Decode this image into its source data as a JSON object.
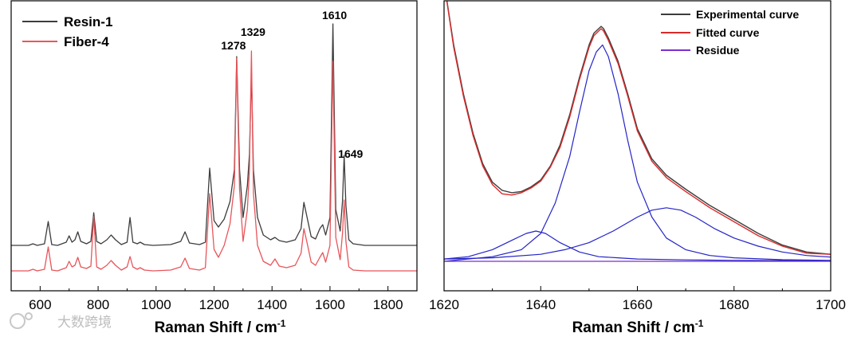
{
  "chart_data": [
    {
      "type": "line",
      "xlabel": "Raman Shift / cm",
      "xlabel_sup": "-1",
      "xlim": [
        500,
        1900
      ],
      "xticks": [
        "600",
        "800",
        "1000",
        "1200",
        "1400",
        "1600",
        "1800"
      ],
      "legend_position": "top-left",
      "grid": false,
      "series": [
        {
          "name": "Resin-1",
          "color": "#3d3d3d",
          "x": [
            500,
            560,
            575,
            590,
            615,
            628,
            640,
            660,
            690,
            700,
            710,
            720,
            730,
            740,
            760,
            775,
            785,
            795,
            810,
            830,
            845,
            860,
            880,
            900,
            910,
            920,
            935,
            945,
            960,
            990,
            1050,
            1085,
            1100,
            1115,
            1150,
            1170,
            1185,
            1200,
            1215,
            1235,
            1255,
            1270,
            1278,
            1288,
            1300,
            1315,
            1322,
            1329,
            1336,
            1350,
            1370,
            1395,
            1410,
            1425,
            1450,
            1480,
            1500,
            1510,
            1520,
            1535,
            1550,
            1565,
            1575,
            1585,
            1600,
            1610,
            1620,
            1635,
            1643,
            1649,
            1655,
            1665,
            1680,
            1720,
            1800,
            1900
          ],
          "y": [
            0.05,
            0.05,
            0.07,
            0.05,
            0.07,
            0.35,
            0.06,
            0.05,
            0.09,
            0.17,
            0.09,
            0.12,
            0.22,
            0.1,
            0.07,
            0.1,
            0.46,
            0.1,
            0.07,
            0.12,
            0.18,
            0.12,
            0.06,
            0.09,
            0.4,
            0.09,
            0.07,
            0.09,
            0.06,
            0.05,
            0.06,
            0.1,
            0.22,
            0.08,
            0.06,
            0.09,
            1.02,
            0.36,
            0.28,
            0.38,
            0.6,
            1.0,
            2.42,
            1.0,
            0.4,
            0.8,
            1.2,
            2.22,
            1.0,
            0.4,
            0.18,
            0.12,
            0.15,
            0.11,
            0.09,
            0.12,
            0.26,
            0.59,
            0.42,
            0.16,
            0.13,
            0.26,
            0.31,
            0.18,
            0.4,
            2.83,
            0.5,
            0.23,
            0.6,
            1.18,
            0.55,
            0.12,
            0.07,
            0.05,
            0.05,
            0.05
          ]
        },
        {
          "name": "Fiber-4",
          "color": "#e8555a",
          "x": [
            500,
            560,
            575,
            590,
            615,
            628,
            640,
            660,
            690,
            700,
            710,
            720,
            730,
            740,
            760,
            775,
            785,
            795,
            810,
            830,
            845,
            860,
            880,
            900,
            910,
            920,
            935,
            945,
            960,
            990,
            1050,
            1085,
            1100,
            1115,
            1150,
            1170,
            1185,
            1200,
            1215,
            1235,
            1255,
            1270,
            1278,
            1288,
            1300,
            1315,
            1322,
            1329,
            1336,
            1350,
            1370,
            1395,
            1410,
            1425,
            1450,
            1480,
            1500,
            1510,
            1520,
            1535,
            1550,
            1565,
            1575,
            1585,
            1600,
            1610,
            1620,
            1635,
            1643,
            1649,
            1655,
            1665,
            1680,
            1720,
            1800,
            1900
          ],
          "y": [
            0.03,
            0.03,
            0.05,
            0.03,
            0.05,
            0.33,
            0.04,
            0.03,
            0.07,
            0.15,
            0.08,
            0.1,
            0.2,
            0.08,
            0.06,
            0.09,
            0.71,
            0.08,
            0.05,
            0.1,
            0.16,
            0.1,
            0.04,
            0.08,
            0.21,
            0.08,
            0.05,
            0.07,
            0.04,
            0.03,
            0.04,
            0.08,
            0.19,
            0.06,
            0.04,
            0.07,
            1.0,
            0.3,
            0.2,
            0.35,
            0.62,
            1.1,
            2.7,
            1.05,
            0.4,
            0.8,
            1.3,
            2.79,
            1.0,
            0.35,
            0.15,
            0.1,
            0.18,
            0.09,
            0.07,
            0.1,
            0.25,
            0.56,
            0.4,
            0.14,
            0.1,
            0.2,
            0.26,
            0.14,
            0.35,
            2.66,
            0.45,
            0.17,
            0.5,
            0.92,
            0.4,
            0.08,
            0.04,
            0.03,
            0.03,
            0.03
          ]
        }
      ],
      "annotations": [
        {
          "text": "1278",
          "x": 1278
        },
        {
          "text": "1329",
          "x": 1329
        },
        {
          "text": "1610",
          "x": 1610
        },
        {
          "text": "1649",
          "x": 1649
        }
      ]
    },
    {
      "type": "line",
      "xlabel": "Raman Shift / cm",
      "xlabel_sup": "-1",
      "xlim": [
        1620,
        1700
      ],
      "xticks": [
        "1620",
        "1640",
        "1660",
        "1680",
        "1700"
      ],
      "legend_position": "top-right",
      "grid": false,
      "series": [
        {
          "name": "Experimental curve",
          "color": "#3d3d3d",
          "x": [
            1620,
            1622,
            1624,
            1626,
            1628,
            1630,
            1632,
            1634,
            1636,
            1638,
            1640,
            1642,
            1644,
            1646,
            1648,
            1650,
            1651,
            1652,
            1652.5,
            1653,
            1654,
            1656,
            1658,
            1660,
            1663,
            1666,
            1670,
            1675,
            1680,
            1685,
            1690,
            1695,
            1700
          ],
          "y": [
            1.2,
            0.93,
            0.72,
            0.55,
            0.42,
            0.34,
            0.305,
            0.295,
            0.3,
            0.32,
            0.35,
            0.41,
            0.5,
            0.63,
            0.79,
            0.93,
            0.98,
            1.0,
            1.01,
            1.0,
            0.96,
            0.86,
            0.72,
            0.57,
            0.44,
            0.37,
            0.31,
            0.24,
            0.18,
            0.12,
            0.07,
            0.04,
            0.03
          ]
        },
        {
          "name": "Fitted curve",
          "color": "#d92b2b",
          "x": [
            1620,
            1622,
            1624,
            1626,
            1628,
            1630,
            1632,
            1634,
            1636,
            1638,
            1640,
            1642,
            1644,
            1646,
            1648,
            1650,
            1651,
            1652,
            1652.5,
            1653,
            1654,
            1656,
            1658,
            1660,
            1663,
            1666,
            1670,
            1675,
            1680,
            1685,
            1690,
            1695,
            1700
          ],
          "y": [
            1.2,
            0.92,
            0.71,
            0.54,
            0.41,
            0.33,
            0.29,
            0.285,
            0.295,
            0.315,
            0.345,
            0.405,
            0.49,
            0.62,
            0.78,
            0.92,
            0.97,
            0.99,
            1.0,
            0.99,
            0.95,
            0.85,
            0.71,
            0.56,
            0.43,
            0.36,
            0.3,
            0.23,
            0.17,
            0.11,
            0.065,
            0.035,
            0.03
          ]
        },
        {
          "name": "Residue",
          "color": "#7b2fd1",
          "x": [
            1620,
            1700
          ],
          "y": [
            0.0,
            0.0
          ]
        },
        {
          "name": "",
          "color": "#2424c8",
          "x": [
            1620,
            1625,
            1630,
            1634,
            1637,
            1639,
            1641,
            1644,
            1648,
            1652,
            1656,
            1660,
            1670,
            1680,
            1700
          ],
          "y": [
            0.01,
            0.02,
            0.05,
            0.09,
            0.12,
            0.13,
            0.12,
            0.08,
            0.04,
            0.02,
            0.015,
            0.01,
            0.006,
            0.004,
            0.002
          ]
        },
        {
          "name": "",
          "color": "#2424c8",
          "x": [
            1620,
            1630,
            1636,
            1640,
            1643,
            1646,
            1648,
            1650,
            1651.5,
            1652.8,
            1654,
            1656,
            1658,
            1660,
            1663,
            1666,
            1670,
            1675,
            1680,
            1690,
            1700
          ],
          "y": [
            0.0,
            0.02,
            0.05,
            0.12,
            0.25,
            0.45,
            0.64,
            0.82,
            0.9,
            0.93,
            0.88,
            0.72,
            0.52,
            0.34,
            0.19,
            0.1,
            0.05,
            0.025,
            0.015,
            0.007,
            0.004
          ]
        },
        {
          "name": "",
          "color": "#2424c8",
          "x": [
            1620,
            1630,
            1640,
            1645,
            1650,
            1655,
            1660,
            1663,
            1666,
            1669,
            1672,
            1676,
            1680,
            1685,
            1690,
            1695,
            1700
          ],
          "y": [
            0.01,
            0.015,
            0.03,
            0.05,
            0.08,
            0.13,
            0.19,
            0.22,
            0.23,
            0.22,
            0.19,
            0.14,
            0.1,
            0.065,
            0.04,
            0.025,
            0.018
          ]
        }
      ]
    }
  ],
  "watermark": "大数跨境"
}
